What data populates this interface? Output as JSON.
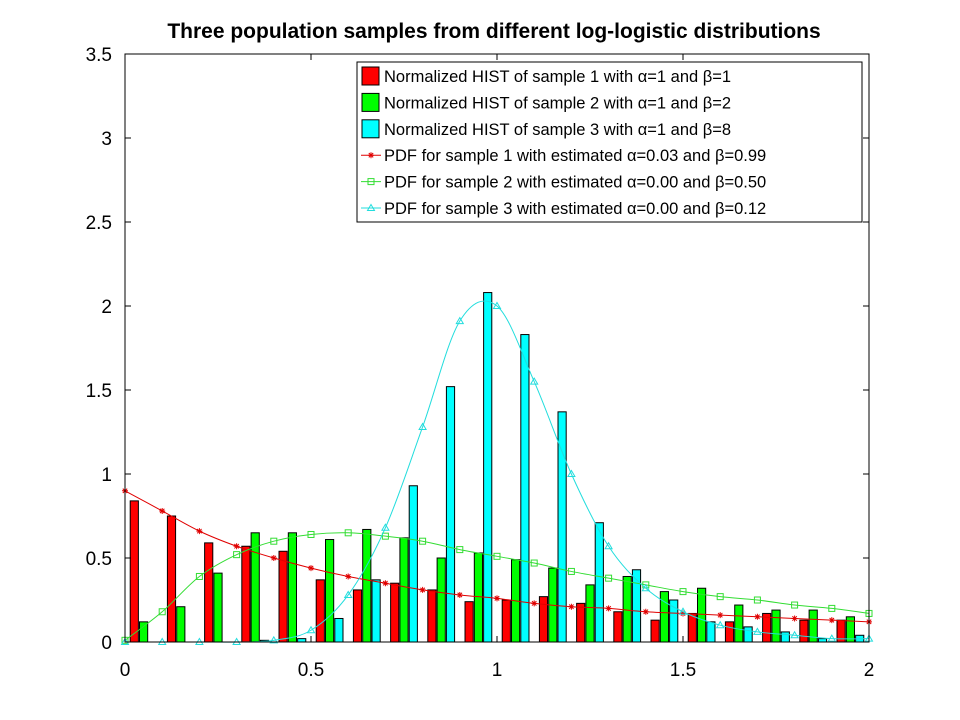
{
  "chart_data": {
    "type": "bar",
    "title": "Three population samples from different log-logistic distributions",
    "xlabel": "",
    "ylabel": "",
    "xlim": [
      0,
      2
    ],
    "ylim": [
      0,
      3.5
    ],
    "x_ticks": [
      "0",
      "0.5",
      "1",
      "1.5",
      "2"
    ],
    "y_ticks": [
      "0",
      "0.5",
      "1",
      "1.5",
      "2",
      "2.5",
      "3",
      "3.5"
    ],
    "grid": false,
    "legend_position": "top-right",
    "bin_centers": [
      0.05,
      0.15,
      0.25,
      0.35,
      0.45,
      0.55,
      0.65,
      0.75,
      0.85,
      0.95,
      1.05,
      1.15,
      1.25,
      1.35,
      1.45,
      1.55,
      1.65,
      1.75,
      1.85,
      1.95
    ],
    "histograms": [
      {
        "name": "Normalized HIST of sample 1 with α=1 and β=1",
        "color": "#ff0000",
        "values": [
          0.84,
          0.75,
          0.59,
          0.57,
          0.54,
          0.37,
          0.31,
          0.35,
          0.31,
          0.24,
          0.25,
          0.27,
          0.23,
          0.18,
          0.13,
          0.17,
          0.12,
          0.17,
          0.13,
          0.13
        ]
      },
      {
        "name": "Normalized HIST of sample 2 with α=1 and β=2",
        "color": "#00ff00",
        "values": [
          0.12,
          0.21,
          0.41,
          0.65,
          0.65,
          0.61,
          0.67,
          0.62,
          0.5,
          0.53,
          0.49,
          0.44,
          0.34,
          0.39,
          0.3,
          0.32,
          0.22,
          0.19,
          0.19,
          0.15
        ]
      },
      {
        "name": "Normalized HIST of sample 3 with α=1 and β=8",
        "color": "#00ffff",
        "values": [
          0.0,
          0.0,
          0.0,
          0.01,
          0.02,
          0.14,
          0.37,
          0.93,
          1.52,
          2.08,
          1.83,
          1.37,
          0.71,
          0.43,
          0.25,
          0.12,
          0.09,
          0.06,
          0.02,
          0.04
        ]
      }
    ],
    "pdf_x": [
      0,
      0.1,
      0.2,
      0.3,
      0.4,
      0.5,
      0.6,
      0.7,
      0.8,
      0.9,
      1.0,
      1.1,
      1.2,
      1.3,
      1.4,
      1.5,
      1.6,
      1.7,
      1.8,
      1.9,
      2.0
    ],
    "pdfs": [
      {
        "name": "PDF for sample 1 with estimated α=0.03 and β=0.99",
        "color": "#e00000",
        "marker": "star",
        "values": [
          0.9,
          0.78,
          0.66,
          0.57,
          0.5,
          0.44,
          0.39,
          0.35,
          0.31,
          0.28,
          0.26,
          0.23,
          0.21,
          0.2,
          0.18,
          0.17,
          0.16,
          0.15,
          0.14,
          0.13,
          0.12
        ]
      },
      {
        "name": "PDF for sample 2 with estimated α=0.00 and β=0.50",
        "color": "#33dd33",
        "marker": "square",
        "values": [
          0.01,
          0.18,
          0.39,
          0.52,
          0.6,
          0.64,
          0.65,
          0.63,
          0.6,
          0.55,
          0.51,
          0.47,
          0.42,
          0.38,
          0.34,
          0.3,
          0.27,
          0.25,
          0.22,
          0.2,
          0.17
        ]
      },
      {
        "name": "PDF for sample 3 with estimated α=0.00 and β=0.12",
        "color": "#22dddd",
        "marker": "triangle",
        "values": [
          0.0,
          0.0,
          0.0,
          0.0,
          0.01,
          0.07,
          0.28,
          0.68,
          1.28,
          1.91,
          2.0,
          1.55,
          1.0,
          0.57,
          0.32,
          0.18,
          0.1,
          0.06,
          0.04,
          0.02,
          0.02
        ]
      }
    ]
  }
}
